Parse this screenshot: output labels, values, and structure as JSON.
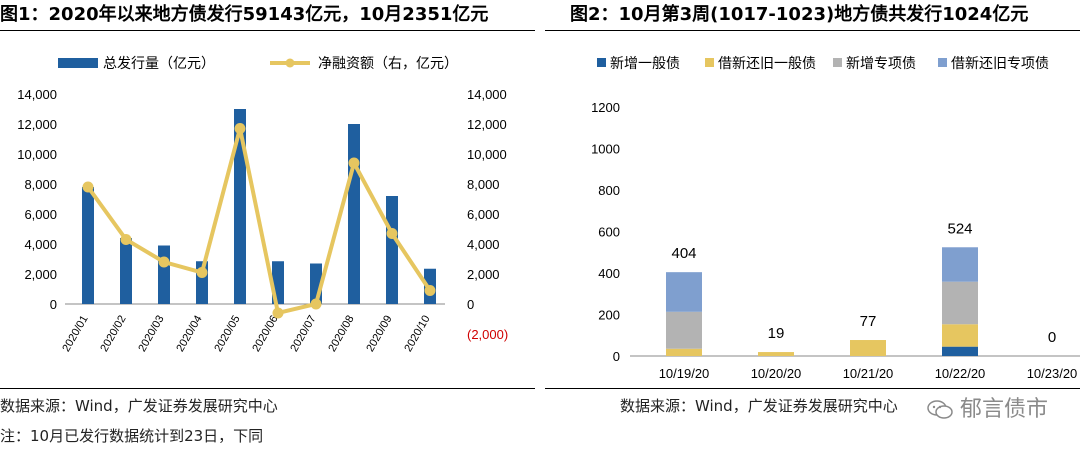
{
  "left": {
    "title": "图1：2020年以来地方债发行59143亿元，10月2351亿元",
    "source": "数据来源：Wind，广发证券发展研究中心",
    "note": "注：10月已发行数据统计到23日，下同"
  },
  "right": {
    "title": "图2：10月第3周(1017-1023)地方债共发行1024亿元",
    "source": "数据来源：Wind，广发证券发展研究中心"
  },
  "watermark": {
    "text": "郁言债市",
    "icon": "wechat-icon"
  },
  "chart_data": [
    {
      "type": "bar+line",
      "categories": [
        "2020/01",
        "2020/02",
        "2020/03",
        "2020/04",
        "2020/05",
        "2020/06",
        "2020/07",
        "2020/08",
        "2020/09",
        "2020/10"
      ],
      "series": [
        {
          "name": "总发行量（亿元）",
          "type": "bar",
          "axis": "left",
          "color": "#1f5f9f",
          "values": [
            7800,
            4400,
            3900,
            2850,
            13000,
            2850,
            2700,
            12000,
            7200,
            2351
          ]
        },
        {
          "name": "净融资额（右，亿元）",
          "type": "line",
          "axis": "right",
          "color": "#e6c660",
          "values": [
            7800,
            4300,
            2800,
            2100,
            11700,
            -600,
            0,
            9400,
            4700,
            900
          ]
        }
      ],
      "y_left": {
        "min": 0,
        "max": 14000,
        "ticks": [
          "0",
          "2,000",
          "4,000",
          "6,000",
          "8,000",
          "10,000",
          "12,000",
          "14,000"
        ]
      },
      "y_right": {
        "min": -2000,
        "max": 14000,
        "ticks": [
          "(2,000)",
          "0",
          "2,000",
          "4,000",
          "6,000",
          "8,000",
          "10,000",
          "12,000",
          "14,000"
        ]
      },
      "legend_position": "top"
    },
    {
      "type": "stacked-bar",
      "categories": [
        "10/19/20",
        "10/20/20",
        "10/21/20",
        "10/22/20",
        "10/23/20"
      ],
      "series": [
        {
          "name": "新增一般债",
          "color": "#1f5f9f",
          "values": [
            0,
            0,
            0,
            45,
            0
          ]
        },
        {
          "name": "借新还旧一般债",
          "color": "#e6c660",
          "values": [
            35,
            19,
            77,
            108,
            0
          ]
        },
        {
          "name": "新增专项债",
          "color": "#b3b3b3",
          "values": [
            178,
            0,
            0,
            205,
            0
          ]
        },
        {
          "name": "借新还旧专项债",
          "color": "#7f9fcf",
          "values": [
            191,
            0,
            0,
            166,
            0
          ]
        }
      ],
      "totals": [
        "404",
        "19",
        "77",
        "524",
        "0"
      ],
      "y": {
        "min": 0,
        "max": 1200,
        "ticks": [
          "0",
          "200",
          "400",
          "600",
          "800",
          "1000",
          "1200"
        ]
      },
      "legend_position": "top"
    }
  ]
}
